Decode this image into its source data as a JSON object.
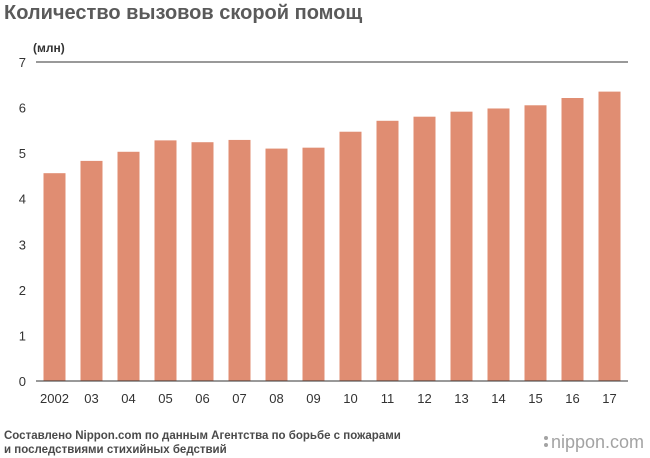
{
  "chart_data": {
    "type": "bar",
    "title": "Количество вызовов скорой помощ",
    "unit_label": "(млн)",
    "xlabel": "",
    "ylabel": "",
    "categories": [
      "2002",
      "03",
      "04",
      "05",
      "06",
      "07",
      "08",
      "09",
      "10",
      "11",
      "12",
      "13",
      "14",
      "15",
      "16",
      "17"
    ],
    "values": [
      4.56,
      4.83,
      5.03,
      5.28,
      5.24,
      5.29,
      5.1,
      5.12,
      5.47,
      5.71,
      5.8,
      5.91,
      5.98,
      6.05,
      6.21,
      6.35
    ],
    "ylim": [
      0,
      7
    ],
    "yticks": [
      0,
      1,
      2,
      3,
      4,
      5,
      6,
      7
    ],
    "grid": false,
    "legend": "none",
    "bar_color": "#e08d72",
    "axis_color": "#333333"
  },
  "footer": {
    "source_line1": "Составлено Nippon.com по данным Агентства по борьбе с пожарами",
    "source_line2": "и последствиями стихийных бедствий",
    "brand": "nippon.com"
  }
}
